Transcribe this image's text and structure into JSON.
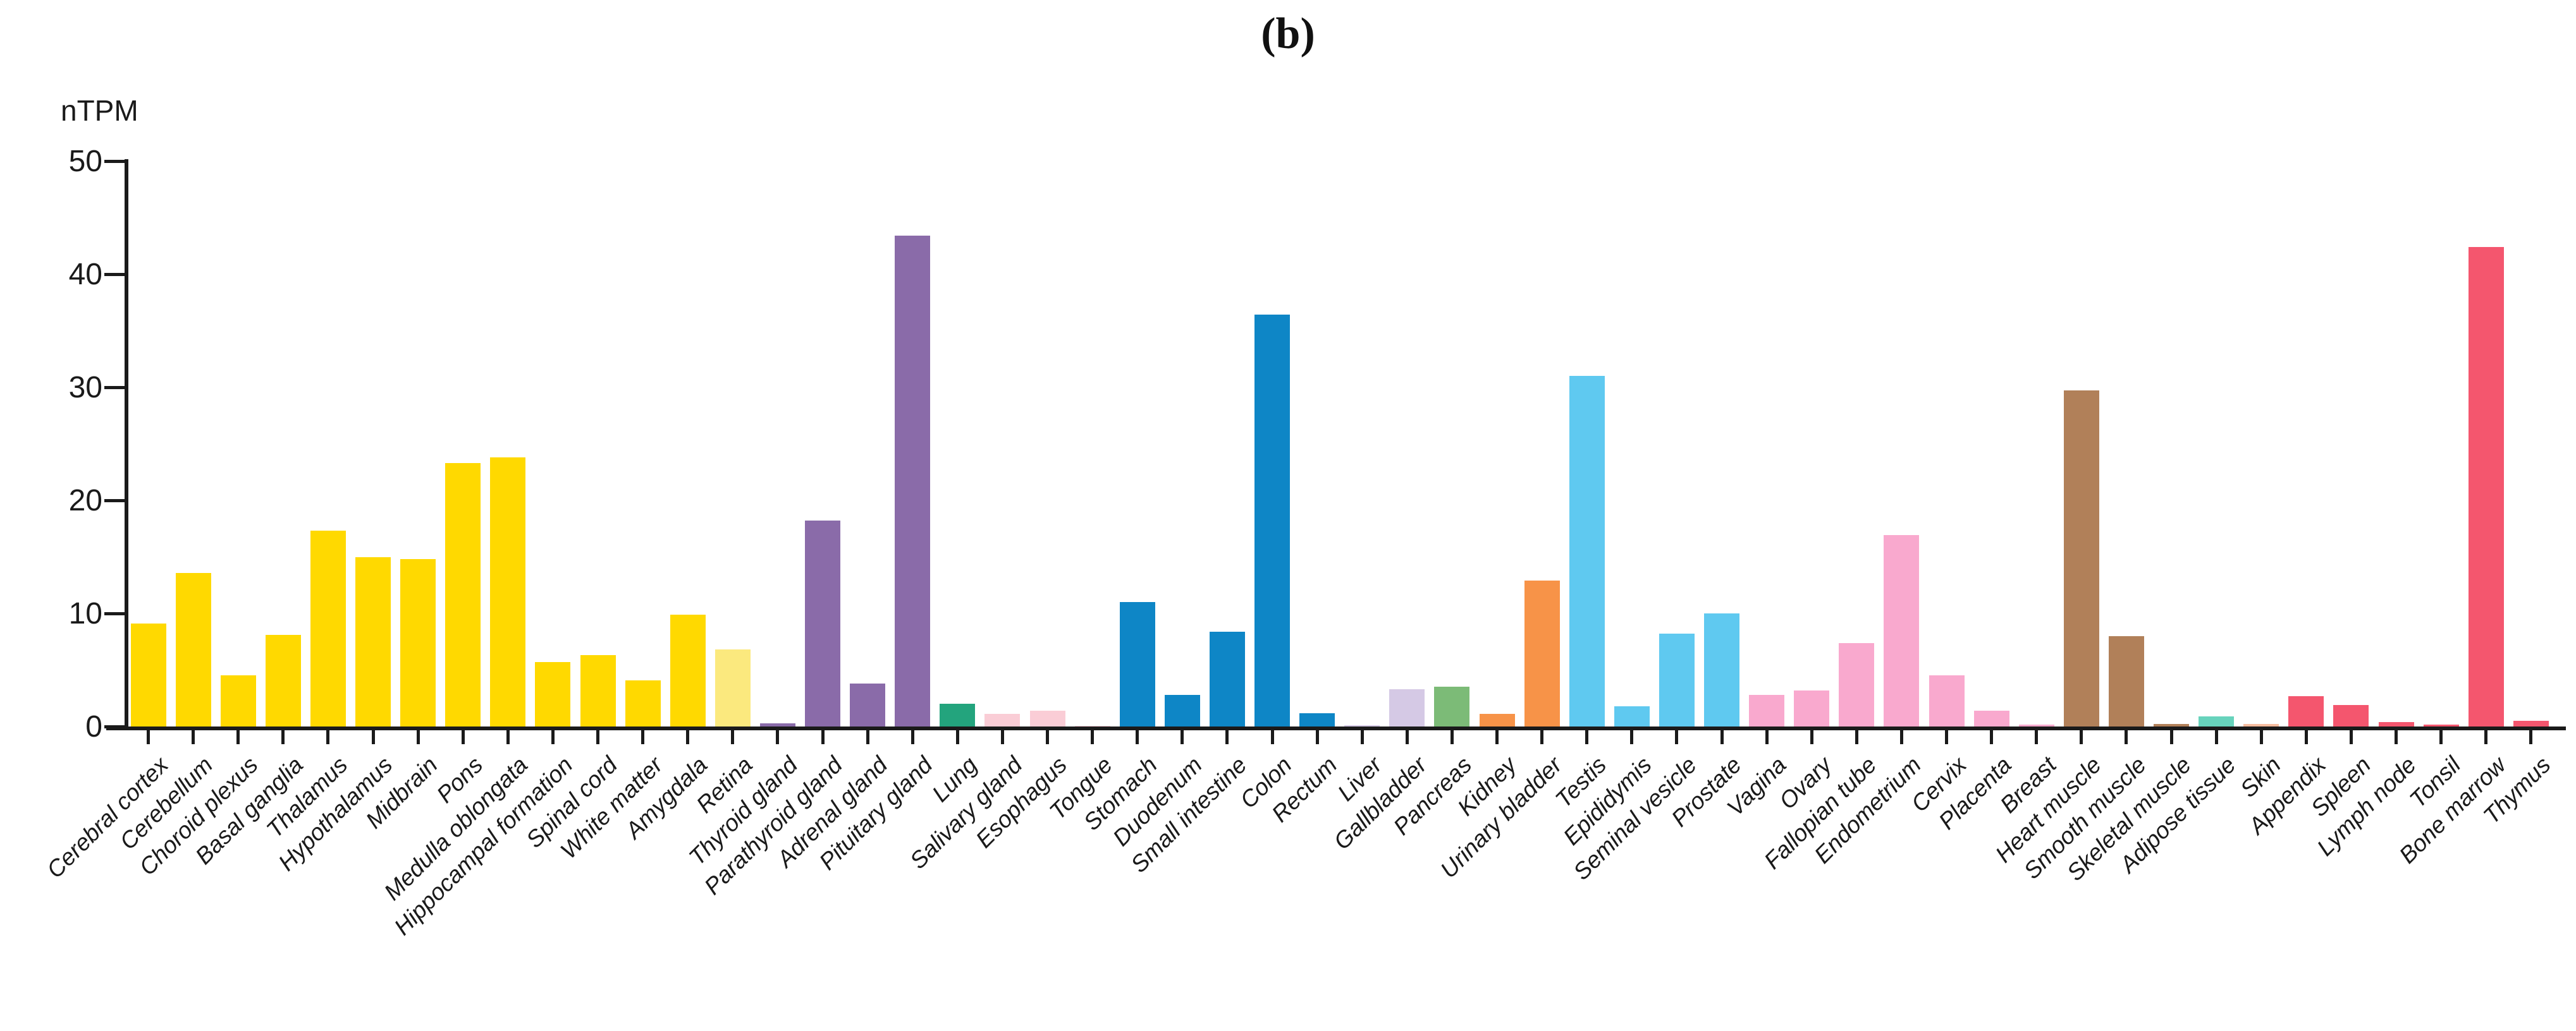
{
  "chart_data": {
    "type": "bar",
    "title": "(b)",
    "ylabel": "nTPM",
    "ylim": [
      0,
      50
    ],
    "yticks": [
      0,
      10,
      20,
      30,
      40,
      50
    ],
    "grid": false,
    "legend": "none",
    "categories": [
      "Cerebral cortex",
      "Cerebellum",
      "Choroid plexus",
      "Basal ganglia",
      "Thalamus",
      "Hypothalamus",
      "Midbrain",
      "Pons",
      "Medulla oblongata",
      "Hippocampal formation",
      "Spinal cord",
      "White matter",
      "Amygdala",
      "Retina",
      "Thyroid gland",
      "Parathyroid gland",
      "Adrenal gland",
      "Pituitary gland",
      "Lung",
      "Salivary gland",
      "Esophagus",
      "Tongue",
      "Stomach",
      "Duodenum",
      "Small intestine",
      "Colon",
      "Rectum",
      "Liver",
      "Gallbladder",
      "Pancreas",
      "Kidney",
      "Urinary bladder",
      "Testis",
      "Epididymis",
      "Seminal vesicle",
      "Prostate",
      "Vagina",
      "Ovary",
      "Fallopian tube",
      "Endometrium",
      "Cervix",
      "Placenta",
      "Breast",
      "Heart muscle",
      "Smooth muscle",
      "Skeletal muscle",
      "Adipose tissue",
      "Skin",
      "Appendix",
      "Spleen",
      "Lymph node",
      "Tonsil",
      "Bone marrow",
      "Thymus"
    ],
    "values": [
      9.1,
      13.6,
      4.5,
      8.1,
      17.3,
      15.0,
      14.8,
      23.3,
      23.8,
      5.7,
      6.3,
      4.1,
      9.9,
      6.8,
      0.3,
      18.2,
      3.8,
      43.4,
      2.0,
      1.1,
      1.4,
      0.05,
      11.0,
      2.8,
      8.4,
      36.4,
      1.2,
      0.1,
      3.3,
      3.5,
      1.1,
      12.9,
      31.0,
      1.8,
      8.2,
      10.0,
      2.8,
      3.2,
      7.4,
      16.9,
      4.5,
      1.4,
      0.15,
      29.7,
      8.0,
      0.2,
      0.9,
      0.25,
      2.7,
      1.9,
      0.4,
      0.15,
      42.4,
      0.5
    ],
    "bar_colors": [
      "#FFD900",
      "#FFD900",
      "#FFD900",
      "#FFD900",
      "#FFD900",
      "#FFD900",
      "#FFD900",
      "#FFD900",
      "#FFD900",
      "#FFD900",
      "#FFD900",
      "#FFD900",
      "#FFD900",
      "#FBE97E",
      "#8A6BA9",
      "#8A6BA9",
      "#8A6BA9",
      "#8A6BA9",
      "#23A47D",
      "#FACDD6",
      "#FACDD6",
      "#FACDD6",
      "#0E86C6",
      "#0E86C6",
      "#0E86C6",
      "#0E86C6",
      "#0E86C6",
      "#D5C9E5",
      "#D5C9E5",
      "#7CBB77",
      "#F79348",
      "#F79348",
      "#5FC9F0",
      "#5FC9F0",
      "#5FC9F0",
      "#5FC9F0",
      "#F9A9CE",
      "#F9A9CE",
      "#F9A9CE",
      "#F9A9CE",
      "#F9A9CE",
      "#F9A9CE",
      "#F9A9CE",
      "#B18059",
      "#B18059",
      "#B18059",
      "#67D3BC",
      "#F6BC9E",
      "#F4566E",
      "#F4566E",
      "#F4566E",
      "#F4566E",
      "#F4566E",
      "#F4566E"
    ],
    "axis_color": "#1a1a1a"
  }
}
